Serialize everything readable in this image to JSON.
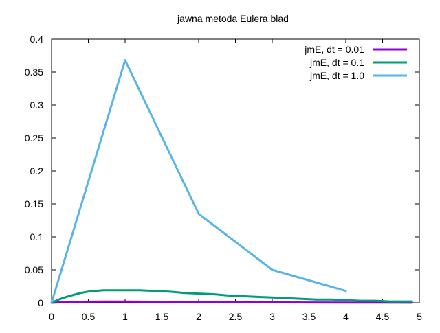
{
  "chart_data": {
    "type": "line",
    "title": "jawna metoda Eulera blad",
    "xlabel": "",
    "ylabel": "",
    "xlim": [
      0,
      5
    ],
    "ylim": [
      0,
      0.4
    ],
    "xticks": [
      "0",
      "0.5",
      "1",
      "1.5",
      "2",
      "2.5",
      "3",
      "3.5",
      "4",
      "4.5",
      "5"
    ],
    "yticks": [
      "0",
      "0.05",
      "0.1",
      "0.15",
      "0.2",
      "0.25",
      "0.3",
      "0.35",
      "0.4"
    ],
    "grid": false,
    "legend_position": "top-right",
    "series": [
      {
        "name": "jmE, dt = 0.01",
        "color": "#9400d3",
        "x": [
          0,
          0.25,
          0.5,
          0.75,
          1,
          1.5,
          2,
          2.5,
          3,
          3.5,
          4,
          4.5,
          4.9
        ],
        "y": [
          0,
          0.0012,
          0.0017,
          0.0019,
          0.0018,
          0.0015,
          0.0012,
          0.0009,
          0.0006,
          0.0004,
          0.0003,
          0.0002,
          0.0001
        ]
      },
      {
        "name": "jmE, dt = 0.1",
        "color": "#009e73",
        "x": [
          0,
          0.1,
          0.2,
          0.3,
          0.4,
          0.5,
          0.6,
          0.7,
          0.8,
          0.9,
          1.0,
          1.2,
          1.4,
          1.6,
          1.8,
          2.0,
          2.2,
          2.4,
          2.6,
          2.8,
          3.0,
          3.2,
          3.4,
          3.6,
          3.8,
          4.0,
          4.2,
          4.4,
          4.6,
          4.8,
          4.9
        ],
        "y": [
          0,
          0.005,
          0.009,
          0.012,
          0.015,
          0.017,
          0.018,
          0.019,
          0.019,
          0.019,
          0.019,
          0.019,
          0.018,
          0.017,
          0.015,
          0.014,
          0.013,
          0.011,
          0.01,
          0.009,
          0.008,
          0.007,
          0.006,
          0.005,
          0.005,
          0.004,
          0.003,
          0.003,
          0.002,
          0.002,
          0.002
        ]
      },
      {
        "name": "jmE, dt = 1.0",
        "color": "#56b4e9",
        "x": [
          0,
          1,
          2,
          3,
          4
        ],
        "y": [
          0,
          0.368,
          0.135,
          0.05,
          0.018
        ]
      }
    ]
  }
}
